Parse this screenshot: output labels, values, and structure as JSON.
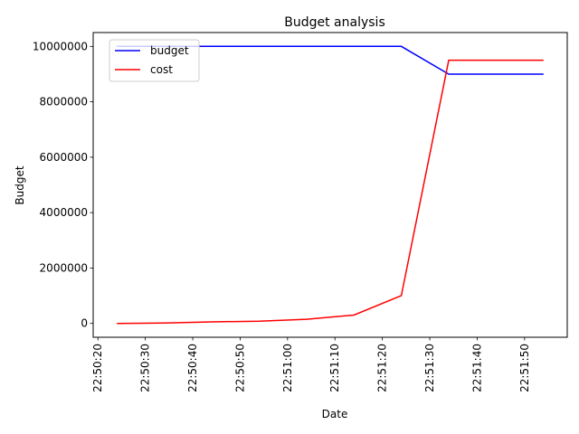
{
  "chart_data": {
    "type": "line",
    "title": "Budget analysis",
    "xlabel": "Date",
    "ylabel": "Budget",
    "x": [
      "22:50:24",
      "22:50:34",
      "22:50:44",
      "22:50:54",
      "22:51:04",
      "22:51:14",
      "22:51:24",
      "22:51:34",
      "22:51:44",
      "22:51:54"
    ],
    "series": [
      {
        "name": "budget",
        "color": "#0000ff",
        "values": [
          10000000,
          10000000,
          10000000,
          10000000,
          10000000,
          10000000,
          10000000,
          9000000,
          9000000,
          9000000
        ]
      },
      {
        "name": "cost",
        "color": "#ff0000",
        "values": [
          0,
          15000,
          55000,
          80000,
          150000,
          300000,
          1000000,
          9500000,
          9500000,
          9500000
        ]
      }
    ],
    "xticks": [
      "22:50:20",
      "22:50:30",
      "22:50:40",
      "22:50:50",
      "22:51:00",
      "22:51:10",
      "22:51:20",
      "22:51:30",
      "22:51:40",
      "22:51:50"
    ],
    "yticks": [
      0,
      2000000,
      4000000,
      6000000,
      8000000,
      10000000
    ],
    "ytick_labels": [
      "0",
      "2000000",
      "4000000",
      "6000000",
      "8000000",
      "10000000"
    ],
    "xlim": [
      "22:50:19",
      "22:51:59"
    ],
    "ylim": [
      -500000,
      10500000
    ],
    "grid": false,
    "legend": "top-left"
  }
}
